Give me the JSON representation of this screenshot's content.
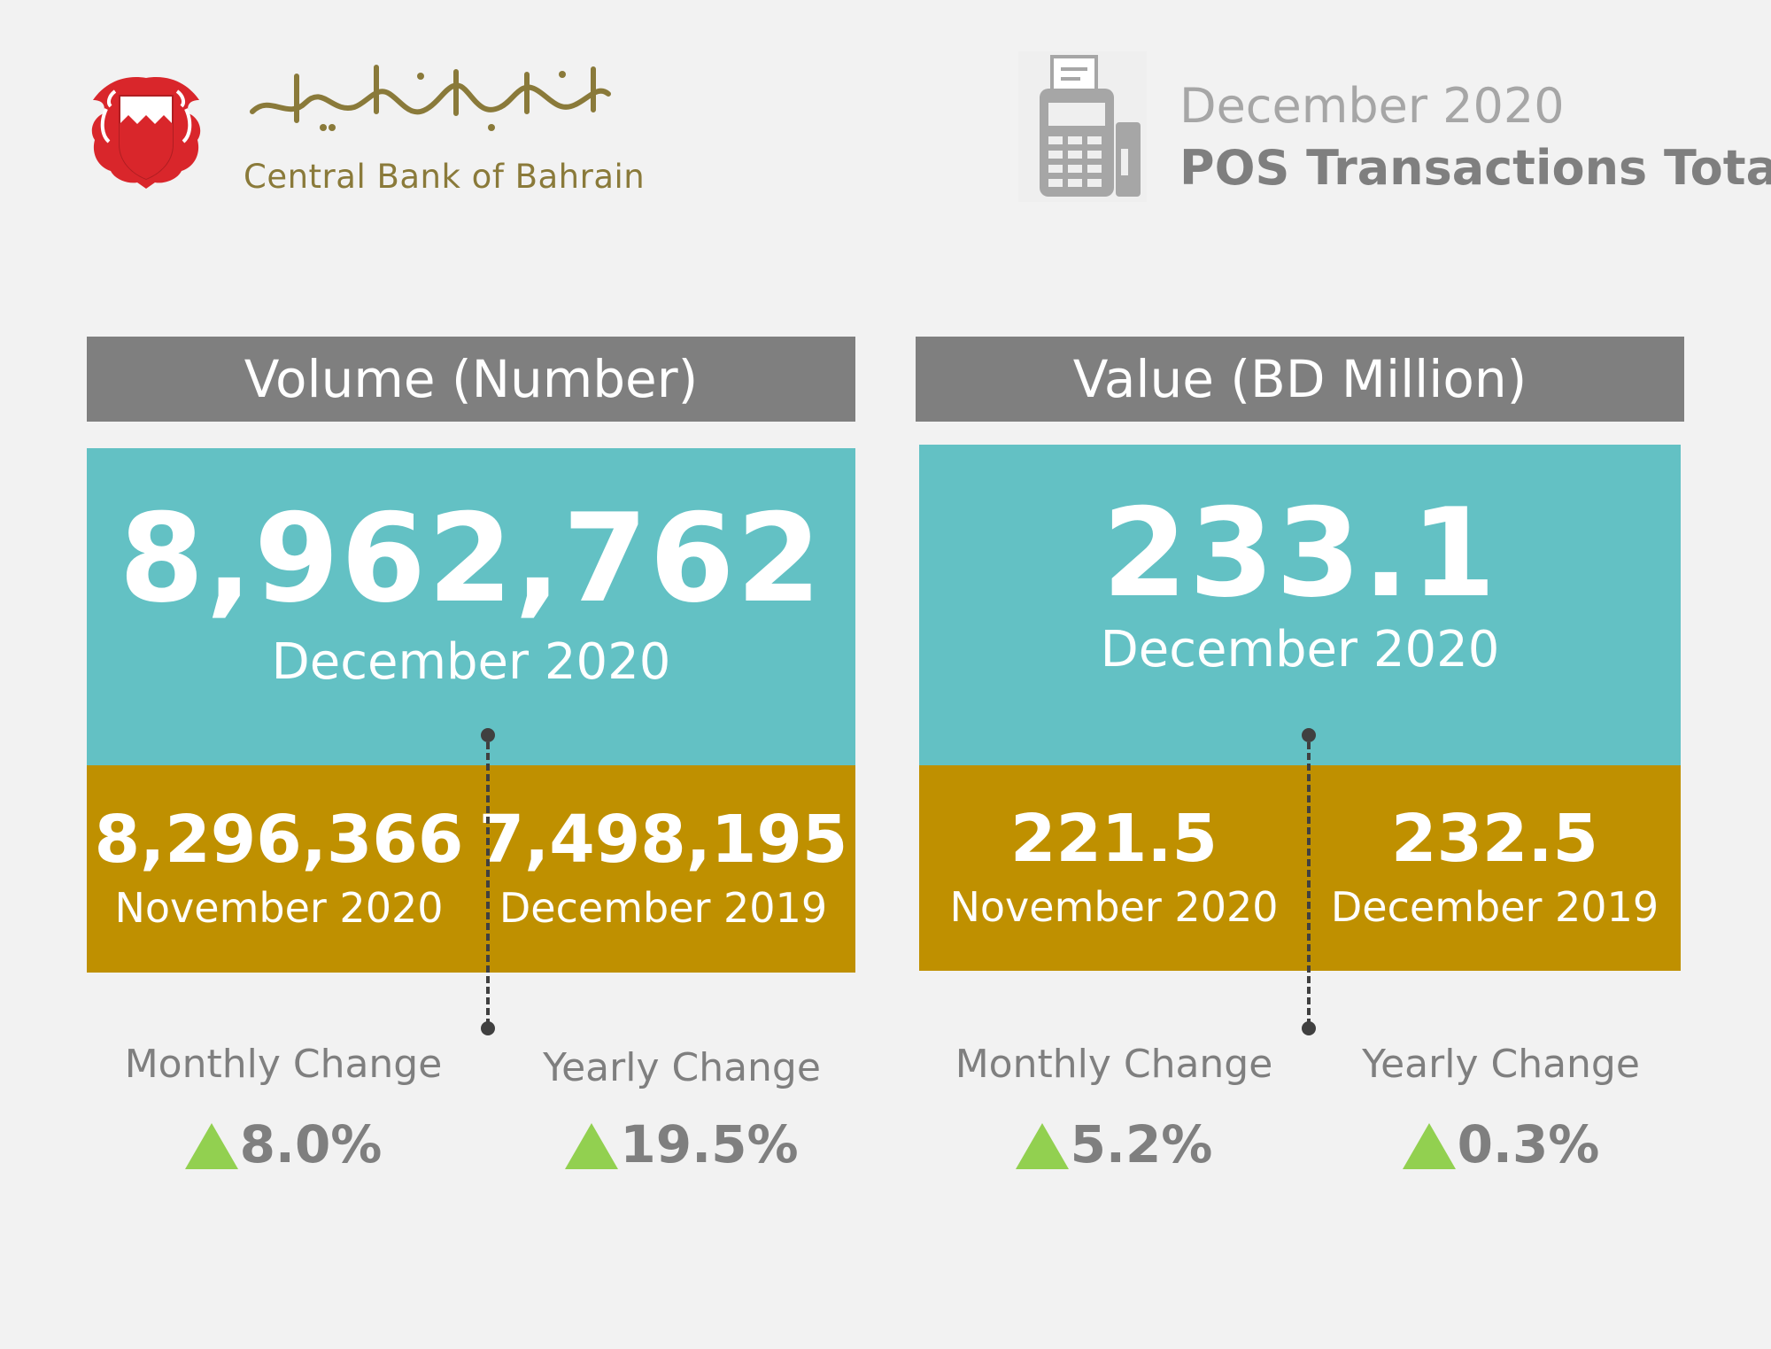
{
  "header": {
    "logo_arabic": "مصرف البحرين المركزي",
    "logo_english": "Central Bank of Bahrain",
    "report_date": "December 2020",
    "report_title": "POS Transactions Total",
    "pos_icon": "pos-terminal-icon"
  },
  "volume": {
    "heading": "Volume (Number)",
    "current": {
      "value": "8,962,762",
      "label": "December 2020"
    },
    "previous_month": {
      "value": "8,296,366",
      "label": "November 2020"
    },
    "previous_year": {
      "value": "7,498,195",
      "label": "December 2019"
    },
    "monthly_change": {
      "label": "Monthly Change",
      "value": "8.0%",
      "direction": "up"
    },
    "yearly_change": {
      "label": "Yearly Change",
      "value": "19.5%",
      "direction": "up"
    }
  },
  "value": {
    "heading": "Value (BD Million)",
    "current": {
      "value": "233.1",
      "label": "December 2020"
    },
    "previous_month": {
      "value": "221.5",
      "label": "November 2020"
    },
    "previous_year": {
      "value": "232.5",
      "label": "December 2019"
    },
    "monthly_change": {
      "label": "Monthly Change",
      "value": "5.2%",
      "direction": "up"
    },
    "yearly_change": {
      "label": "Yearly Change",
      "value": "0.3%",
      "direction": "up"
    }
  },
  "colors": {
    "background": "#f2f2f2",
    "header_bar": "#7f7f7f",
    "teal": "#63c1c4",
    "gold": "#bf9000",
    "up_arrow": "#92d050",
    "logo_text": "#8a7a3a",
    "emblem_red": "#d9262b"
  }
}
